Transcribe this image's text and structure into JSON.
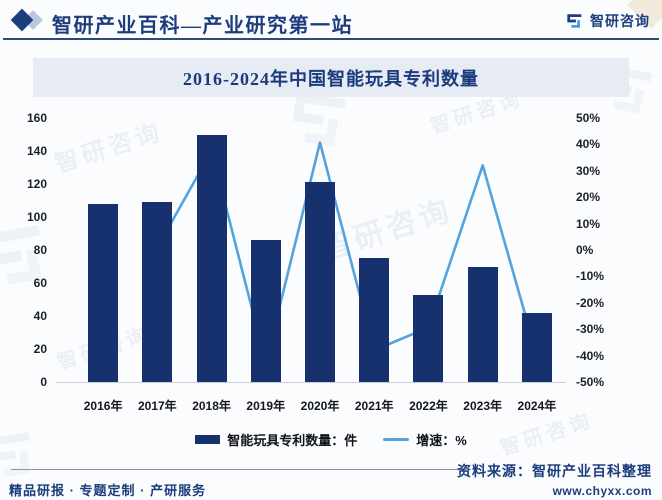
{
  "header": {
    "title": "智研产业百科—产业研究第一站",
    "logo_text": "智研咨询"
  },
  "chart_title": "2016-2024年中国智能玩具专利数量",
  "chart_data": {
    "type": "bar",
    "categories": [
      "2016年",
      "2017年",
      "2018年",
      "2019年",
      "2020年",
      "2021年",
      "2022年",
      "2023年",
      "2024年"
    ],
    "series": [
      {
        "name": "智能玩具专利数量：件",
        "type": "bar",
        "axis": "left",
        "color": "#16316E",
        "values": [
          108,
          109,
          150,
          86,
          121,
          75,
          53,
          70,
          42
        ]
      },
      {
        "name": "增速：%",
        "type": "line",
        "axis": "right",
        "color": "#54A3DE",
        "values": [
          null,
          0.9,
          37.6,
          -42.7,
          40.7,
          -38.0,
          -29.3,
          32.1,
          -40.0
        ]
      }
    ],
    "left_axis": {
      "min": 0,
      "max": 160,
      "step": 20,
      "ticks": [
        "160",
        "140",
        "120",
        "100",
        "80",
        "60",
        "40",
        "20",
        "0"
      ]
    },
    "right_axis": {
      "min": -50,
      "max": 50,
      "step": 10,
      "ticks": [
        "50%",
        "40%",
        "30%",
        "20%",
        "10%",
        "0%",
        "-10%",
        "-20%",
        "-30%",
        "-40%",
        "-50%"
      ]
    },
    "grid": false,
    "legend_position": "bottom",
    "title": "2016-2024年中国智能玩具专利数量"
  },
  "legend": {
    "bar_label": "智能玩具专利数量：件",
    "line_label": "增速：%"
  },
  "footer": {
    "services": "精品研报 · 专题定制 · 产研服务",
    "source": "资料来源：智研产业百科整理",
    "website": "www.chyxx.com"
  },
  "watermark": {
    "text": "智研咨询"
  },
  "colors": {
    "bar": "#16316E",
    "line": "#54A3DE",
    "navy_text": "#1C3C7C",
    "title_band_bg": "#E6EBF4",
    "page_bg": "#FBFCFE"
  }
}
